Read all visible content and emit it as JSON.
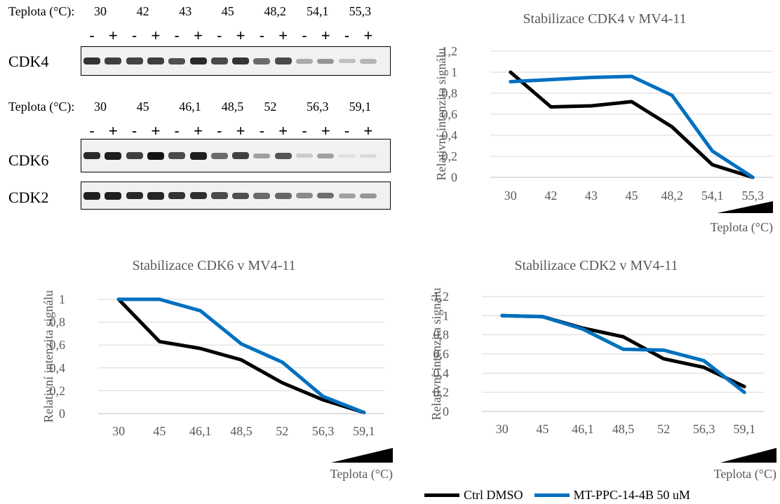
{
  "blots": [
    {
      "temp_label": "Teplota (°C):",
      "temps": [
        "30",
        "42",
        "43",
        "45",
        "48,2",
        "54,1",
        "55,3"
      ],
      "signs": [
        "-",
        "+"
      ],
      "proteins": [
        {
          "name": "CDK4",
          "band_intensities": [
            0.85,
            0.8,
            0.78,
            0.8,
            0.72,
            0.9,
            0.75,
            0.85,
            0.6,
            0.75,
            0.3,
            0.4,
            0.2,
            0.25
          ]
        }
      ]
    },
    {
      "temp_label": "Teplota (°C):",
      "temps": [
        "30",
        "45",
        "46,1",
        "48,5",
        "52",
        "56,3",
        "59,1"
      ],
      "signs": [
        "-",
        "+"
      ],
      "proteins": [
        {
          "name": "CDK6",
          "band_intensities": [
            0.9,
            0.95,
            0.8,
            1.0,
            0.75,
            0.95,
            0.6,
            0.8,
            0.35,
            0.7,
            0.15,
            0.35,
            0.05,
            0.08
          ]
        },
        {
          "name": "CDK2",
          "band_intensities": [
            0.95,
            0.95,
            0.9,
            0.92,
            0.85,
            0.88,
            0.75,
            0.72,
            0.6,
            0.62,
            0.45,
            0.58,
            0.35,
            0.4
          ]
        }
      ]
    }
  ],
  "chart_data": [
    {
      "type": "line",
      "title": "Stabilizace CDK4 v MV4-11",
      "xlabel": "Teplota (°C)",
      "ylabel": "Relativní intenzita signálu",
      "categories": [
        "30",
        "42",
        "43",
        "45",
        "48,2",
        "54,1",
        "55,3"
      ],
      "yticks": [
        "0",
        "0,2",
        "0,4",
        "0,6",
        "0,8",
        "1",
        "1,2"
      ],
      "ylim": [
        0,
        1.2
      ],
      "series": [
        {
          "name": "Ctrl DMSO",
          "color": "#000000",
          "values": [
            1.0,
            0.67,
            0.68,
            0.72,
            0.48,
            0.12,
            0.0
          ]
        },
        {
          "name": "MT-PPC-14-4B 50 uM",
          "color": "#0070c0",
          "values": [
            0.91,
            0.93,
            0.95,
            0.96,
            0.78,
            0.25,
            0.0
          ]
        }
      ]
    },
    {
      "type": "line",
      "title": "Stabilizace CDK6 v MV4-11",
      "xlabel": "Teplota (°C)",
      "ylabel": "Relativní intenzita signálu",
      "categories": [
        "30",
        "45",
        "46,1",
        "48,5",
        "52",
        "56,3",
        "59,1"
      ],
      "yticks": [
        "0",
        "0,2",
        "0,4",
        "0,6",
        "0,8",
        "1"
      ],
      "ylim": [
        0,
        1.0
      ],
      "series": [
        {
          "name": "Ctrl DMSO",
          "color": "#000000",
          "values": [
            1.0,
            0.63,
            0.57,
            0.47,
            0.27,
            0.12,
            0.01
          ]
        },
        {
          "name": "MT-PPC-14-4B 50 uM",
          "color": "#0070c0",
          "values": [
            1.0,
            1.0,
            0.9,
            0.61,
            0.45,
            0.15,
            0.01
          ]
        }
      ]
    },
    {
      "type": "line",
      "title": "Stabilizace CDK2 v MV4-11",
      "xlabel": "Teplota (°C)",
      "ylabel": "Relativní intenzita signálu",
      "categories": [
        "30",
        "45",
        "46,1",
        "48,5",
        "52",
        "56,3",
        "59,1"
      ],
      "yticks": [
        "0",
        "0,2",
        "0,4",
        "0,6",
        "0,8",
        "1",
        "1,2"
      ],
      "ylim": [
        0,
        1.2
      ],
      "series": [
        {
          "name": "Ctrl DMSO",
          "color": "#000000",
          "values": [
            1.0,
            0.99,
            0.87,
            0.78,
            0.55,
            0.46,
            0.26
          ]
        },
        {
          "name": "MT-PPC-14-4B 50 uM",
          "color": "#0070c0",
          "values": [
            1.0,
            0.99,
            0.86,
            0.65,
            0.64,
            0.53,
            0.2
          ]
        }
      ]
    }
  ],
  "legend": [
    {
      "label": "Ctrl DMSO",
      "color": "#000000"
    },
    {
      "label": "MT-PPC-14-4B 50 uM",
      "color": "#0070c0"
    }
  ]
}
